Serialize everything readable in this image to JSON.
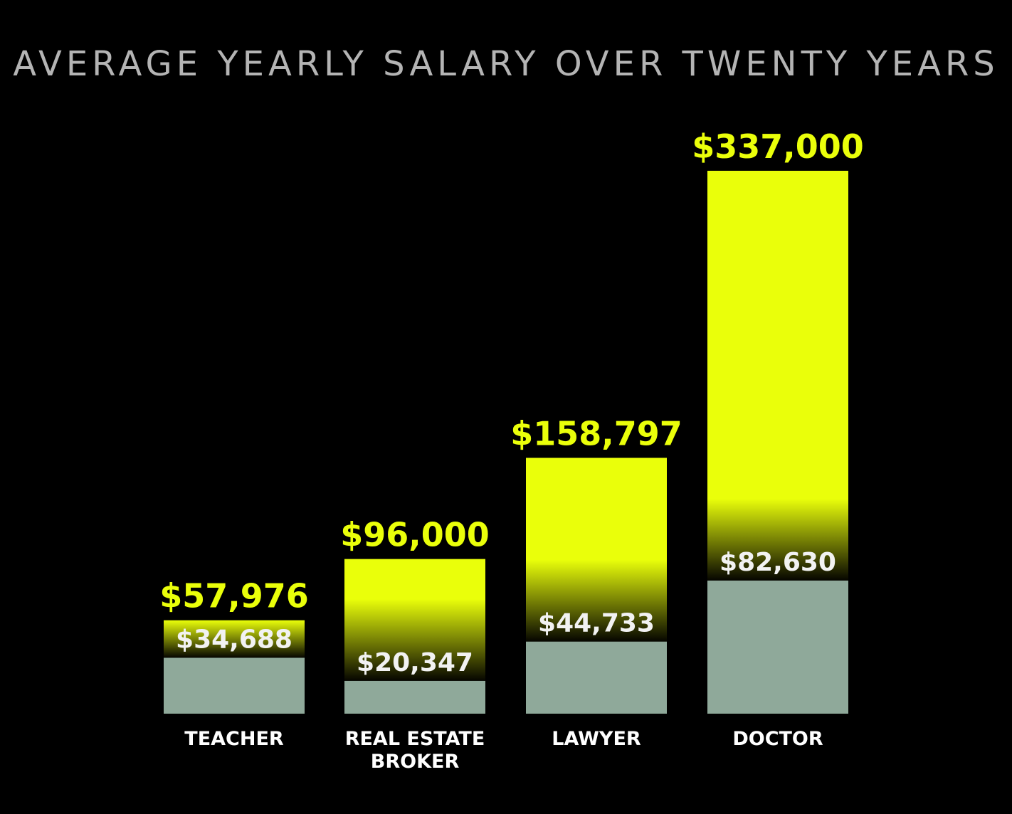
{
  "chart_data": {
    "type": "bar",
    "title": "AVERAGE YEARLY SALARY OVER TWENTY YEARS",
    "xlabel": "",
    "ylabel": "",
    "ylim": [
      0,
      337000
    ],
    "grid": false,
    "categories": [
      [
        "TEACHER"
      ],
      [
        "REAL ESTATE",
        "BROKER"
      ],
      [
        "LAWYER"
      ],
      [
        "DOCTOR"
      ]
    ],
    "series": [
      {
        "values": [
          34688,
          20347,
          44733,
          82630
        ],
        "labels": [
          "$34,688",
          "$20,347",
          "$44,733",
          "$82,630"
        ],
        "color": "#8fa99a"
      },
      {
        "values": [
          57976,
          96000,
          158797,
          337000
        ],
        "labels": [
          "$57,976",
          "$96,000",
          "$158,797",
          "$337,000"
        ],
        "color": "#eaff0a"
      }
    ],
    "colors": {
      "background": "#000000",
      "title": "#b4b4b4",
      "top_label": "#eaff0a",
      "inner_label": "#f2f2f2",
      "category_label": "#ffffff"
    }
  }
}
